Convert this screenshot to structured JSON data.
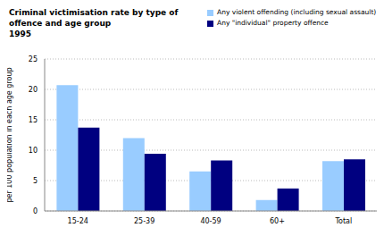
{
  "chart_data": {
    "type": "bar",
    "title": "Criminal victimisation rate by type of offence and age group",
    "subtitle": "1995",
    "y_label": "per 100 population in each age group",
    "categories": [
      "15-24",
      "25-39",
      "40-59",
      "60+",
      "Total"
    ],
    "series": [
      {
        "name": "Any violent offending (including sexual assault)",
        "color": "#99ccff",
        "values": [
          20.7,
          12.0,
          6.5,
          1.8,
          8.2
        ]
      },
      {
        "name": "Any \"individual\" property offence",
        "color": "#000080",
        "values": [
          13.7,
          9.4,
          8.3,
          3.7,
          8.5
        ]
      }
    ],
    "ylim": [
      0,
      25
    ],
    "yticks": [
      0,
      5,
      10,
      15,
      20,
      25
    ],
    "grid": true,
    "legend": "top-right"
  }
}
